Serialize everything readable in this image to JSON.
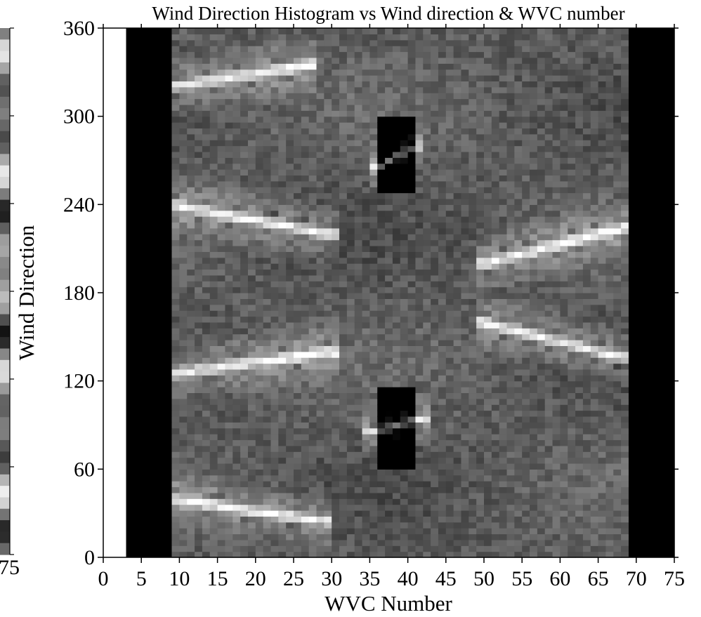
{
  "chart_data": {
    "type": "heatmap",
    "title": "Wind Direction Histogram vs Wind direction & WVC number",
    "xlabel": "WVC Number",
    "ylabel": "Wind Direction",
    "xlim": [
      0,
      75
    ],
    "ylim": [
      0,
      360
    ],
    "x_ticks": [
      0,
      5,
      10,
      15,
      20,
      25,
      30,
      35,
      40,
      45,
      50,
      55,
      60,
      65,
      70,
      75
    ],
    "y_ticks": [
      0,
      60,
      120,
      180,
      240,
      300,
      360
    ],
    "colorbar": {
      "position": "left",
      "visible_tick_label": "75"
    },
    "colors": {
      "background": "#ffffff",
      "no_data": "#000000",
      "axis": "#000000"
    },
    "no_data_columns": [
      [
        3,
        9
      ],
      [
        69,
        75
      ]
    ],
    "data_columns": [
      9,
      69
    ],
    "grid": false,
    "features": [
      {
        "description": "bright band",
        "wvc": [
          9,
          27
        ],
        "direction": [
          320,
          335
        ]
      },
      {
        "description": "bright band",
        "wvc": [
          9,
          29
        ],
        "direction": [
          40,
          25
        ]
      },
      {
        "description": "bright band",
        "wvc": [
          9,
          30
        ],
        "direction": [
          240,
          220
        ]
      },
      {
        "description": "bright band",
        "wvc": [
          9,
          30
        ],
        "direction": [
          125,
          140
        ]
      },
      {
        "description": "bright band",
        "wvc": [
          50,
          69
        ],
        "direction": [
          200,
          225
        ]
      },
      {
        "description": "bright band",
        "wvc": [
          50,
          69
        ],
        "direction": [
          160,
          135
        ]
      },
      {
        "description": "dark patch",
        "wvc": [
          37,
          40
        ],
        "direction": [
          250,
          300
        ]
      },
      {
        "description": "dark patch",
        "wvc": [
          37,
          40
        ],
        "direction": [
          60,
          115
        ]
      },
      {
        "description": "bright streak",
        "wvc": [
          36,
          41
        ],
        "direction": [
          265,
          280
        ]
      },
      {
        "description": "bright streak",
        "wvc": [
          35,
          42
        ],
        "direction": [
          85,
          95
        ]
      }
    ]
  }
}
